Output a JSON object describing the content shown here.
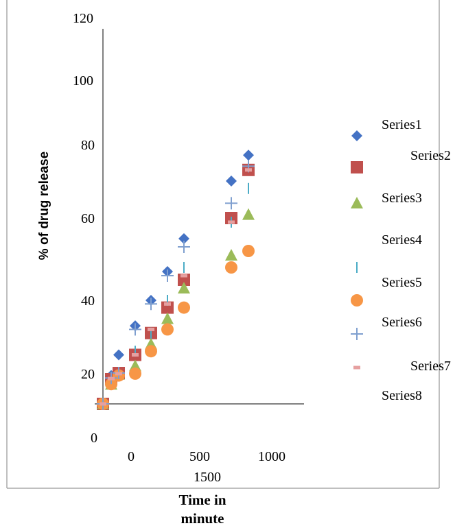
{
  "chart_data": {
    "type": "scatter",
    "title": "",
    "xlabel_line1": "Time in",
    "xlabel_line2": "minute",
    "ylabel": "% of drug release",
    "y_ticks": [
      "120",
      "100",
      "80",
      "60",
      "40",
      "20",
      "0"
    ],
    "x_ticks": [
      "0",
      "500",
      "1000",
      "1500"
    ],
    "xlim": [
      0,
      1500
    ],
    "ylim": [
      0,
      120
    ],
    "legend_position": "right",
    "colors": {
      "blue": "#4472C4",
      "red": "#C0504D",
      "green": "#9BBB59",
      "teal": "#4BACC6",
      "orange": "#F79646",
      "steel": "#7F9FCF",
      "pink": "#E6A0A0",
      "axis": "#808080",
      "frame": "#7f7f7f"
    },
    "series": [
      {
        "name": "Series1",
        "marker": "diamond",
        "color": "#4472C4",
        "x": [
          5,
          60,
          120,
          240,
          480,
          720,
          960,
          1440,
          1560
        ],
        "y": [
          5,
          16,
          25,
          33,
          40,
          47,
          55,
          70,
          77
        ]
      },
      {
        "name": "Series2",
        "marker": "square",
        "color": "#C0504D",
        "x": [
          5,
          60,
          120,
          240,
          480,
          720,
          960,
          1440,
          1560
        ],
        "y": [
          5,
          10,
          20,
          25,
          31,
          38,
          45,
          60,
          73
        ]
      },
      {
        "name": "Series3",
        "marker": "triangle",
        "color": "#9BBB59",
        "x": [
          5,
          60,
          120,
          240,
          480,
          720,
          960,
          1440,
          1560
        ],
        "y": [
          5,
          9,
          18,
          22,
          28,
          35,
          43,
          51,
          61
        ]
      },
      {
        "name": "Series4",
        "marker": "none",
        "color": "#000000",
        "x": [],
        "y": []
      },
      {
        "name": "Series5",
        "marker": "vbar",
        "color": "#4BACC6",
        "x": [
          5,
          60,
          120,
          240,
          480,
          720,
          960,
          1440,
          1560
        ],
        "y": [
          5,
          9,
          17,
          26,
          31,
          40,
          48,
          59,
          68
        ]
      },
      {
        "name": "Series6",
        "marker": "circle",
        "color": "#F79646",
        "x": [
          5,
          60,
          120,
          240,
          480,
          720,
          960,
          1440,
          1560
        ],
        "y": [
          5,
          9,
          16,
          19,
          26,
          32,
          38,
          48,
          52
        ]
      },
      {
        "name": "Series7",
        "marker": "plus",
        "color": "#7F9FCF",
        "x": [
          5,
          60,
          120,
          240,
          480,
          720,
          960,
          1440,
          1560
        ],
        "y": [
          5,
          12,
          20,
          32,
          39,
          46,
          53,
          64,
          74
        ]
      },
      {
        "name": "Series8",
        "marker": "dash",
        "color": "#E6A0A0",
        "x": [
          5,
          60,
          120,
          240,
          480,
          720,
          960,
          1440,
          1560
        ],
        "y": [
          5,
          11,
          19,
          25,
          32,
          39,
          46,
          59,
          73
        ]
      }
    ]
  }
}
